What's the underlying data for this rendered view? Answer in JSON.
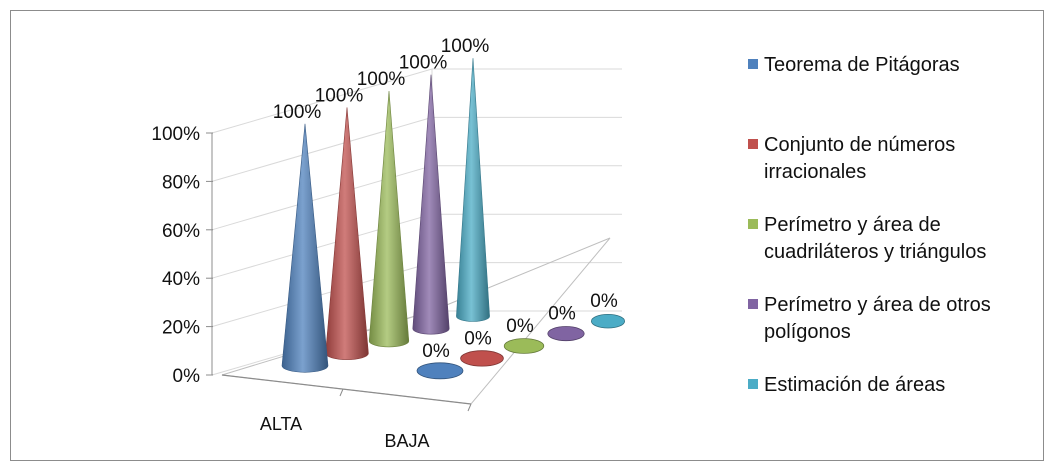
{
  "chart_data": {
    "type": "bar",
    "subtype": "3d-cone",
    "categories": [
      "ALTA",
      "BAJA"
    ],
    "series": [
      {
        "name": "Teorema de Pitágoras",
        "values": [
          100,
          0
        ],
        "labels": [
          "100%",
          "0%"
        ],
        "color": "#4f81bd"
      },
      {
        "name": "Conjunto de números irracionales",
        "values": [
          100,
          0
        ],
        "labels": [
          "100%",
          "0%"
        ],
        "color": "#c0504d"
      },
      {
        "name": "Perímetro y área de cuadriláteros y triángulos",
        "values": [
          100,
          0
        ],
        "labels": [
          "100%",
          "0%"
        ],
        "color": "#9bbb59"
      },
      {
        "name": "Perímetro y área de otros polígonos",
        "values": [
          100,
          0
        ],
        "labels": [
          "100%",
          "0%"
        ],
        "color": "#8064a2"
      },
      {
        "name": "Estimación de áreas",
        "values": [
          100,
          0
        ],
        "labels": [
          "100%",
          "0%"
        ],
        "color": "#4bacc6"
      }
    ],
    "y_ticks": [
      "0%",
      "20%",
      "40%",
      "60%",
      "80%",
      "100%"
    ],
    "ylim": [
      0,
      100
    ],
    "grid": true,
    "legend": "right"
  }
}
